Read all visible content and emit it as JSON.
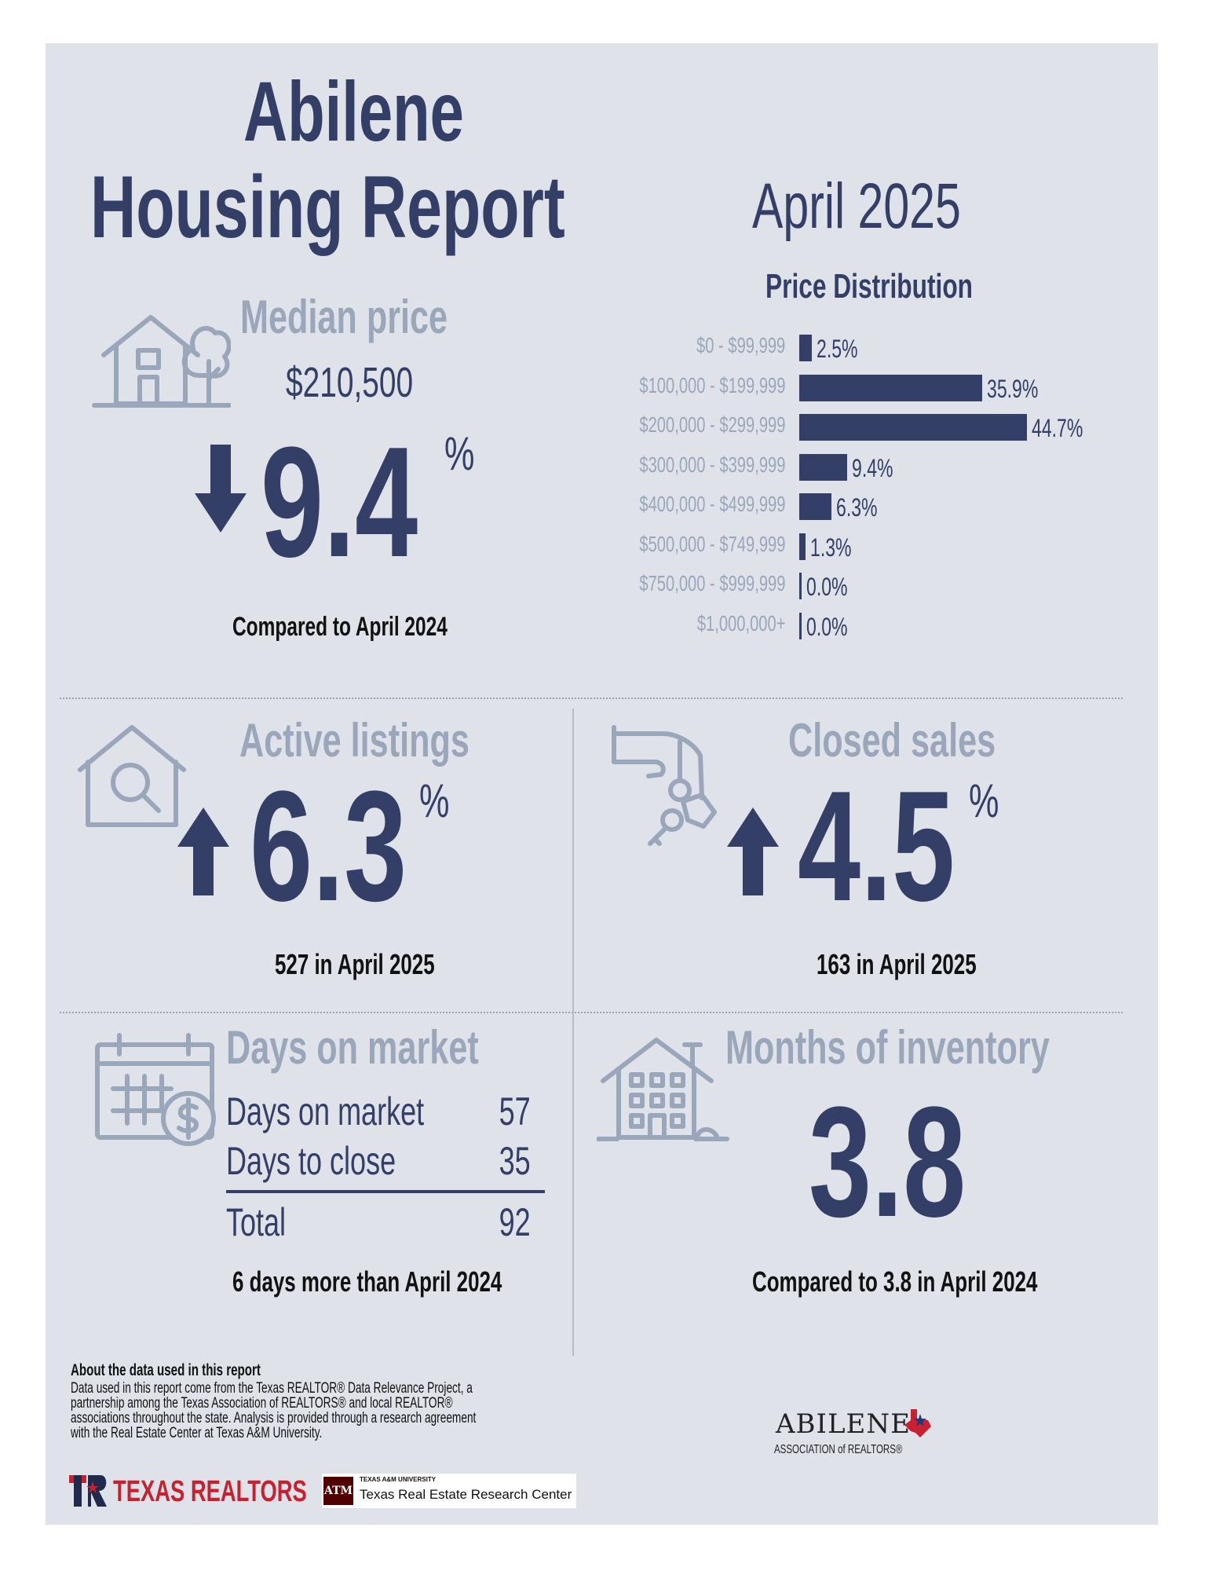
{
  "header": {
    "city": "Abilene",
    "title": "Housing Report",
    "period": "April 2025"
  },
  "median_price": {
    "label": "Median price",
    "value": "$210,500",
    "direction": "down",
    "change": "9.4",
    "percent_sign": "%",
    "comparison": "Compared to April 2024"
  },
  "price_distribution": {
    "title": "Price Distribution",
    "rows": [
      {
        "range": "$0 - $99,999",
        "value_label": "2.5%",
        "value": 2.5
      },
      {
        "range": "$100,000 - $199,999",
        "value_label": "35.9%",
        "value": 35.9
      },
      {
        "range": "$200,000 - $299,999",
        "value_label": "44.7%",
        "value": 44.7
      },
      {
        "range": "$300,000 - $399,999",
        "value_label": "9.4%",
        "value": 9.4
      },
      {
        "range": "$400,000 - $499,999",
        "value_label": "6.3%",
        "value": 6.3
      },
      {
        "range": "$500,000 - $749,999",
        "value_label": "1.3%",
        "value": 1.3
      },
      {
        "range": "$750,000 - $999,999",
        "value_label": "0.0%",
        "value": 0.0
      },
      {
        "range": "$1,000,000+",
        "value_label": "0.0%",
        "value": 0.0
      }
    ]
  },
  "chart_data": {
    "type": "bar",
    "title": "Price Distribution",
    "categories": [
      "$0 - $99,999",
      "$100,000 - $199,999",
      "$200,000 - $299,999",
      "$300,000 - $399,999",
      "$400,000 - $499,999",
      "$500,000 - $749,999",
      "$750,000 - $999,999",
      "$1,000,000+"
    ],
    "values": [
      2.5,
      35.9,
      44.7,
      9.4,
      6.3,
      1.3,
      0.0,
      0.0
    ],
    "orientation": "horizontal",
    "xlabel": "",
    "ylabel": ""
  },
  "active_listings": {
    "label": "Active listings",
    "direction": "up",
    "change": "6.3",
    "percent_sign": "%",
    "detail": "527 in April 2025"
  },
  "closed_sales": {
    "label": "Closed sales",
    "direction": "up",
    "change": "4.5",
    "percent_sign": "%",
    "detail": "163 in April 2025"
  },
  "days_on_market": {
    "label": "Days on market",
    "rows": [
      {
        "name": "Days on market",
        "value": "57"
      },
      {
        "name": "Days to close",
        "value": "35"
      }
    ],
    "total_label": "Total",
    "total_value": "92",
    "comparison": "6 days more than April 2024"
  },
  "months_inventory": {
    "label": "Months of inventory",
    "value": "3.8",
    "comparison": "Compared to 3.8 in April 2024"
  },
  "footer": {
    "about_title": "About the data used in this report",
    "about_lines": [
      "Data used in this report come from the Texas REALTOR® Data Relevance Project, a",
      "partnership among the Texas Association of REALTORS® and local REALTOR®",
      "associations throughout the state. Analysis is provided through a research agreement",
      "with the Real Estate Center at Texas A&M University."
    ],
    "texas_realtors_logo": "TEXAS REALTORS",
    "tamu_small": "TEXAS A&M UNIVERSITY",
    "tamu_name": "Texas Real Estate Research Center",
    "tamu_mark": "ATM",
    "abilene_assoc_name": "ABILENE",
    "abilene_assoc_sub": "ASSOCIATION of REALTORS®"
  },
  "colors": {
    "navy": "#333f66",
    "light_label": "#9aa7bb",
    "panel": "#dfe2e9",
    "texas_red": "#c8202f",
    "tamu_maroon": "#500000"
  }
}
